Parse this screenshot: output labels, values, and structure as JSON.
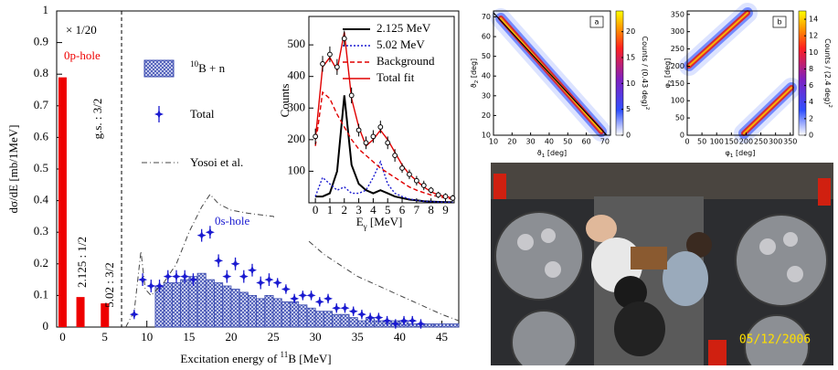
{
  "chart_data": [
    {
      "type": "combo",
      "ylabel": "dσ/dE [mb/1MeV]",
      "xlabel": [
        "Excitation energy of ",
        "11",
        "B [MeV]"
      ],
      "xlim": [
        -0.7,
        47
      ],
      "ylim": [
        0,
        1
      ],
      "xticks": [
        0,
        5,
        10,
        15,
        20,
        25,
        30,
        35,
        40,
        45
      ],
      "yticks": [
        0,
        0.1,
        0.2,
        0.3,
        0.4,
        0.5,
        0.6,
        0.7,
        0.8,
        0.9,
        1
      ],
      "scale_note": "× 1/20",
      "shell_labels": [
        "0p-hole",
        "0s-hole"
      ],
      "level_labels": [
        "g.s. : 3/2",
        "2.125 : 1/2",
        "5.02 : 3/2"
      ],
      "separator": 7,
      "bars": {
        "x": [
          0,
          2.125,
          5.02
        ],
        "values": [
          0.79,
          0.095,
          0.075
        ],
        "color": "#ee0000"
      },
      "histogram": {
        "name": [
          "10",
          "B + n"
        ],
        "color": "#3b4bb0",
        "bins": [
          11,
          12,
          13,
          14,
          15,
          16,
          17,
          18,
          19,
          20,
          21,
          22,
          23,
          24,
          25,
          26,
          27,
          28,
          29,
          30,
          31,
          32,
          33,
          34,
          35,
          36,
          37,
          38,
          39,
          40,
          41,
          42,
          43,
          44,
          45,
          46,
          47
        ],
        "values": [
          0.13,
          0.14,
          0.14,
          0.15,
          0.16,
          0.17,
          0.15,
          0.14,
          0.13,
          0.12,
          0.11,
          0.1,
          0.09,
          0.1,
          0.09,
          0.08,
          0.08,
          0.07,
          0.06,
          0.05,
          0.05,
          0.04,
          0.04,
          0.03,
          0.02,
          0.03,
          0.02,
          0.02,
          0.02,
          0.02,
          0.01,
          0.01,
          0.01,
          0.01,
          0.01,
          0.01
        ]
      },
      "series": [
        {
          "name": "Total",
          "color": "#1a1ad0",
          "x": [
            8.5,
            9.5,
            10.5,
            11.5,
            12.5,
            13.5,
            14.5,
            15.5,
            16.5,
            17.5,
            18.5,
            19.5,
            20.5,
            21.5,
            22.5,
            23.5,
            24.5,
            25.5,
            26.5,
            27.5,
            28.5,
            29.5,
            30.5,
            31.5,
            32.5,
            33.5,
            34.5,
            35.5,
            36.5,
            37.5,
            38.5,
            39.5,
            40.5,
            41.5,
            42.5
          ],
          "values": [
            0.04,
            0.15,
            0.13,
            0.13,
            0.16,
            0.16,
            0.16,
            0.15,
            0.29,
            0.3,
            0.21,
            0.16,
            0.2,
            0.16,
            0.18,
            0.14,
            0.15,
            0.14,
            0.12,
            0.09,
            0.1,
            0.1,
            0.08,
            0.09,
            0.06,
            0.06,
            0.05,
            0.04,
            0.03,
            0.03,
            0.02,
            0.01,
            0.02,
            0.02,
            0.01
          ],
          "errors": [
            0.015,
            0.02,
            0.02,
            0.02,
            0.02,
            0.02,
            0.02,
            0.02,
            0.02,
            0.02,
            0.02,
            0.02,
            0.02,
            0.02,
            0.02,
            0.02,
            0.02,
            0.015,
            0.015,
            0.015,
            0.015,
            0.015,
            0.015,
            0.015,
            0.015,
            0.015,
            0.015,
            0.015,
            0.015,
            0.015,
            0.015,
            0.015,
            0.015,
            0.015,
            0.015
          ]
        },
        {
          "name": "Yosoi et al.",
          "color": "#444444",
          "x": [
            7.5,
            8.5,
            9.3,
            9.8,
            10.5,
            12,
            13.5,
            15,
            16.5,
            17.5,
            18.5,
            20,
            22,
            25,
            28,
            31,
            35,
            40,
            45,
            47
          ],
          "values": [
            0,
            0.05,
            0.24,
            0.12,
            0.1,
            0.14,
            0.2,
            0.3,
            0.38,
            0.42,
            0.39,
            0.37,
            0.36,
            0.35,
            0.3,
            0.23,
            0.16,
            0.1,
            0.04,
            0.02
          ]
        }
      ]
    },
    {
      "type": "line",
      "ylabel": "Counts",
      "xlabel": [
        "E",
        "γ",
        " [MeV]"
      ],
      "xlim": [
        -0.45,
        9.6
      ],
      "ylim": [
        0,
        590
      ],
      "xticks": [
        0,
        1,
        2,
        3,
        4,
        5,
        6,
        7,
        8,
        9
      ],
      "yticks": [
        100,
        200,
        300,
        400,
        500
      ],
      "x": [
        0,
        0.5,
        1,
        1.5,
        2,
        2.5,
        3,
        3.5,
        4,
        4.5,
        5,
        5.5,
        6,
        6.5,
        7,
        7.5,
        8,
        8.5,
        9,
        9.5
      ],
      "series": [
        {
          "name": "2.125 MeV",
          "color": "#000000",
          "style": "solid",
          "values": [
            20,
            20,
            30,
            100,
            340,
            120,
            60,
            40,
            30,
            40,
            30,
            20,
            15,
            10,
            8,
            5,
            4,
            3,
            2,
            2
          ]
        },
        {
          "name": "5.02 MeV",
          "color": "#1a1ad0",
          "style": "dotted",
          "values": [
            20,
            80,
            60,
            40,
            50,
            30,
            30,
            40,
            80,
            130,
            60,
            30,
            20,
            12,
            8,
            5,
            4,
            3,
            2,
            2
          ]
        },
        {
          "name": "Background",
          "color": "#e00000",
          "style": "dashed",
          "values": [
            180,
            350,
            330,
            280,
            240,
            200,
            170,
            150,
            130,
            110,
            95,
            80,
            65,
            50,
            40,
            32,
            25,
            20,
            15,
            12
          ]
        },
        {
          "name": "Total fit",
          "color": "#e00000",
          "style": "solid",
          "values": [
            200,
            430,
            460,
            420,
            540,
            330,
            240,
            180,
            200,
            230,
            200,
            160,
            120,
            90,
            70,
            50,
            35,
            25,
            20,
            15
          ]
        }
      ],
      "points": {
        "values": [
          210,
          440,
          470,
          430,
          520,
          340,
          230,
          190,
          210,
          240,
          190,
          150,
          110,
          90,
          70,
          55,
          40,
          25,
          20,
          15
        ],
        "errors": [
          25,
          25,
          25,
          25,
          25,
          25,
          20,
          20,
          20,
          20,
          20,
          20,
          15,
          15,
          15,
          15,
          10,
          10,
          10,
          10
        ]
      }
    },
    {
      "type": "heatmap",
      "panel": "a",
      "xlabel": [
        "ϑ",
        "1",
        " [deg]"
      ],
      "ylabel": [
        "ϑ",
        "2",
        " [deg]"
      ],
      "xlim": [
        10,
        73
      ],
      "ylim": [
        10,
        73
      ],
      "xticks": [
        10,
        20,
        30,
        40,
        50,
        60,
        70
      ],
      "yticks": [
        10,
        20,
        30,
        40,
        50,
        60,
        70
      ],
      "colorbar": {
        "label": [
          "Counts / (0.43 deg)",
          "2"
        ],
        "lim": [
          0,
          24
        ],
        "ticks": [
          0,
          5,
          10,
          15,
          20
        ]
      }
    },
    {
      "type": "heatmap",
      "panel": "b",
      "xlabel": [
        "φ",
        "1",
        " [deg]"
      ],
      "ylabel": [
        "φ",
        "2",
        " [deg]"
      ],
      "xlim": [
        0,
        360
      ],
      "ylim": [
        0,
        360
      ],
      "xticks": [
        0,
        50,
        100,
        150,
        200,
        250,
        300,
        350
      ],
      "yticks": [
        0,
        50,
        100,
        150,
        200,
        250,
        300,
        350
      ],
      "colorbar": {
        "label": [
          "Counts / (2.4 deg)",
          "2"
        ],
        "lim": [
          0,
          15
        ],
        "ticks": [
          0,
          2,
          4,
          6,
          8,
          10,
          12,
          14
        ]
      }
    }
  ],
  "photo": {
    "timestamp": "05/12/2006"
  }
}
